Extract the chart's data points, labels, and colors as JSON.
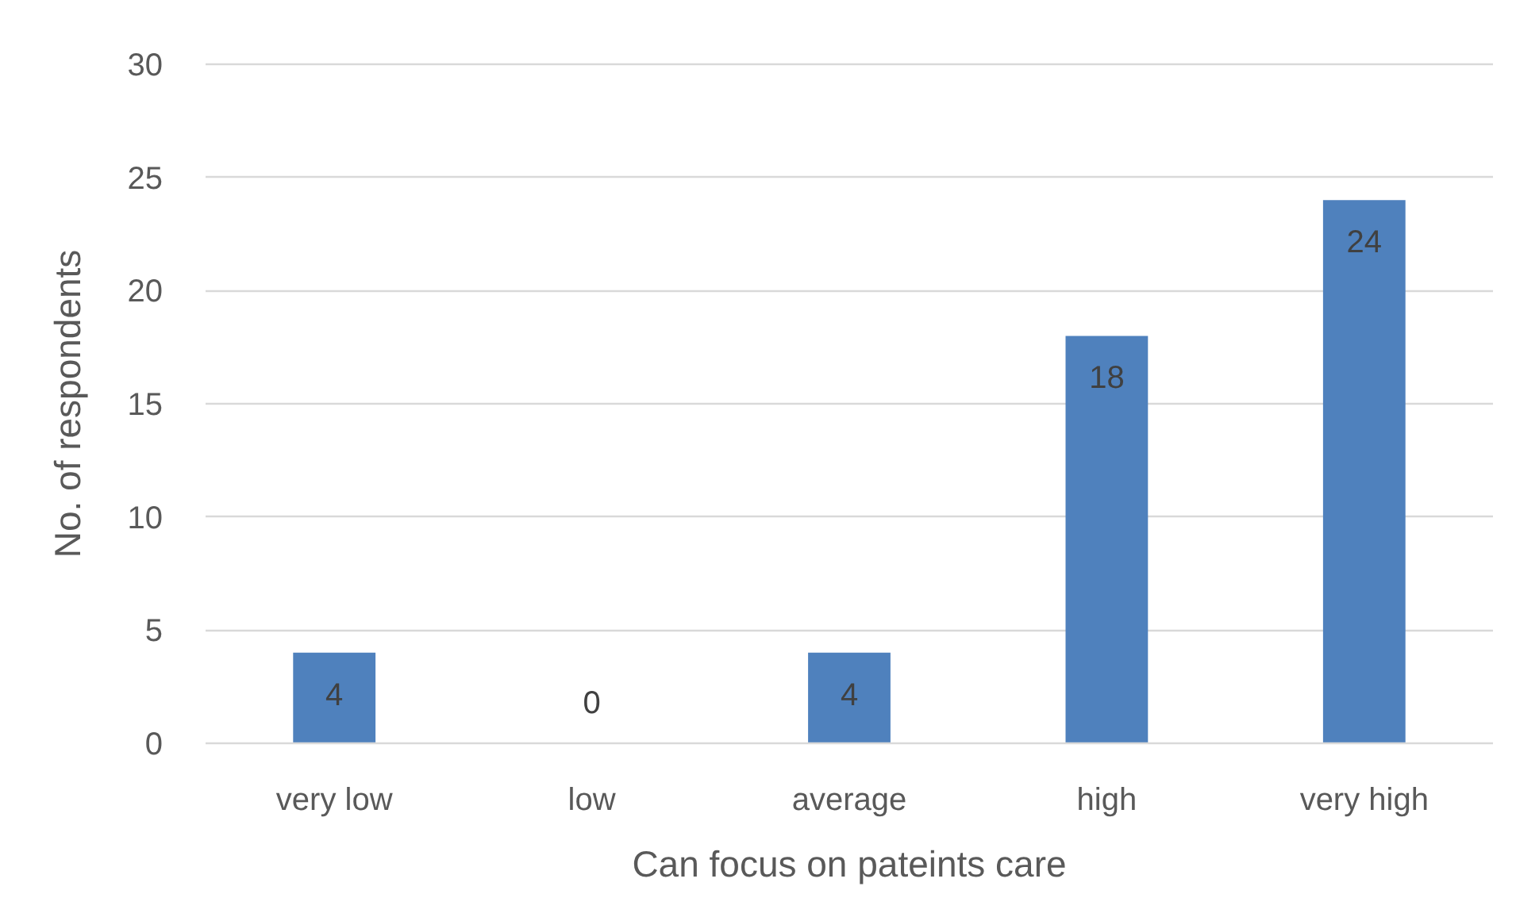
{
  "chart_data": {
    "type": "bar",
    "xlabel": "Can focus on pateints care",
    "ylabel": "No. of respondents",
    "categories": [
      "very low",
      "low",
      "average",
      "high",
      "very high"
    ],
    "values": [
      4,
      0,
      4,
      18,
      24
    ],
    "color": "#4f81bd",
    "ylim": [
      0,
      30
    ],
    "yticks": [
      0,
      5,
      10,
      15,
      20,
      25,
      30
    ],
    "grid": "y",
    "data_labels": true
  }
}
